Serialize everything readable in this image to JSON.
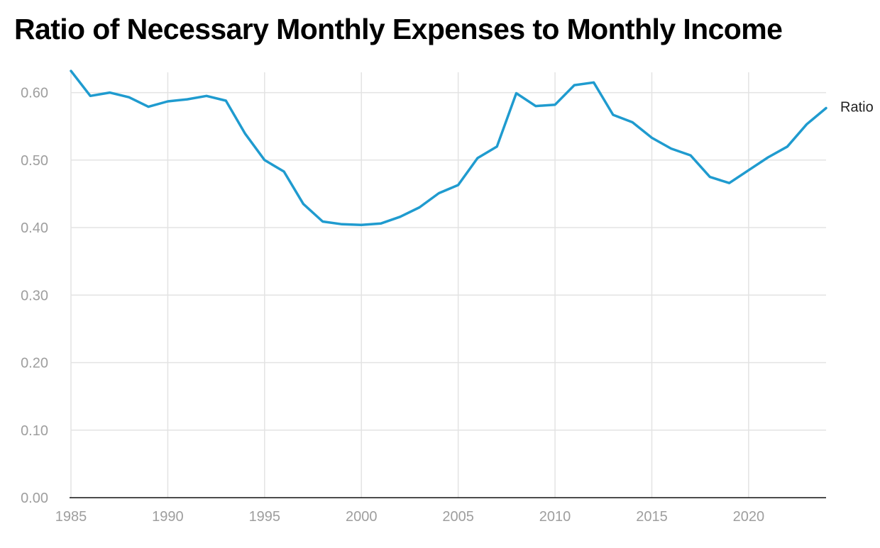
{
  "chart_data": {
    "type": "line",
    "title": "Ratio of Necessary Monthly Expenses to Monthly Income",
    "xlabel": "",
    "ylabel": "",
    "xlim": [
      1985,
      2024
    ],
    "ylim": [
      0,
      0.63
    ],
    "x_ticks": [
      1985,
      1990,
      1995,
      2000,
      2005,
      2010,
      2015,
      2020
    ],
    "y_ticks": [
      0.0,
      0.1,
      0.2,
      0.3,
      0.4,
      0.5,
      0.6
    ],
    "y_tick_labels": [
      "0.00",
      "0.10",
      "0.20",
      "0.30",
      "0.40",
      "0.50",
      "0.60"
    ],
    "grid": true,
    "legend": "direct label at line end",
    "series": [
      {
        "name": "Ratio",
        "color": "#1f9bcf",
        "x": [
          1985,
          1986,
          1987,
          1988,
          1989,
          1990,
          1991,
          1992,
          1993,
          1994,
          1995,
          1996,
          1997,
          1998,
          1999,
          2000,
          2001,
          2002,
          2003,
          2004,
          2005,
          2006,
          2007,
          2008,
          2009,
          2010,
          2011,
          2012,
          2013,
          2014,
          2015,
          2016,
          2017,
          2018,
          2019,
          2020,
          2021,
          2022,
          2023,
          2024
        ],
        "values": [
          0.632,
          0.595,
          0.6,
          0.593,
          0.579,
          0.587,
          0.59,
          0.595,
          0.588,
          0.539,
          0.5,
          0.483,
          0.435,
          0.409,
          0.405,
          0.404,
          0.406,
          0.416,
          0.43,
          0.451,
          0.463,
          0.503,
          0.52,
          0.599,
          0.58,
          0.582,
          0.611,
          0.615,
          0.567,
          0.556,
          0.533,
          0.517,
          0.507,
          0.475,
          0.466,
          0.485,
          0.504,
          0.52,
          0.553,
          0.577
        ]
      }
    ]
  }
}
